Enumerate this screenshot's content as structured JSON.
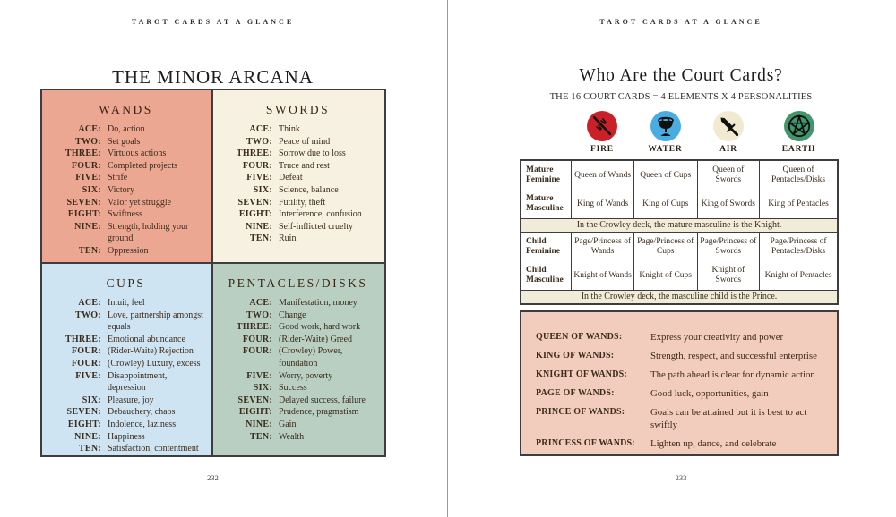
{
  "left_page": {
    "running_head": "TAROT CARDS AT A GLANCE",
    "title": "THE MINOR ARCANA",
    "page_number": "232",
    "quadrants": [
      {
        "name": "WANDS",
        "color": "#eca793",
        "entries": [
          {
            "rank": "ACE:",
            "meaning": "Do, action"
          },
          {
            "rank": "TWO:",
            "meaning": "Set goals"
          },
          {
            "rank": "THREE:",
            "meaning": "Virtuous actions"
          },
          {
            "rank": "FOUR:",
            "meaning": "Completed projects"
          },
          {
            "rank": "FIVE:",
            "meaning": "Strife"
          },
          {
            "rank": "SIX:",
            "meaning": "Victory"
          },
          {
            "rank": "SEVEN:",
            "meaning": "Valor yet struggle"
          },
          {
            "rank": "EIGHT:",
            "meaning": "Swiftness"
          },
          {
            "rank": "NINE:",
            "meaning": "Strength, holding your ground"
          },
          {
            "rank": "TEN:",
            "meaning": "Oppression"
          }
        ]
      },
      {
        "name": "SWORDS",
        "color": "#f6f1e0",
        "entries": [
          {
            "rank": "ACE:",
            "meaning": "Think"
          },
          {
            "rank": "TWO:",
            "meaning": "Peace of mind"
          },
          {
            "rank": "THREE:",
            "meaning": "Sorrow due to loss"
          },
          {
            "rank": "FOUR:",
            "meaning": "Truce and rest"
          },
          {
            "rank": "FIVE:",
            "meaning": "Defeat"
          },
          {
            "rank": "SIX:",
            "meaning": "Science, balance"
          },
          {
            "rank": "SEVEN:",
            "meaning": "Futility, theft"
          },
          {
            "rank": "EIGHT:",
            "meaning": "Interference, confusion"
          },
          {
            "rank": "NINE:",
            "meaning": "Self-inflicted cruelty"
          },
          {
            "rank": "TEN:",
            "meaning": "Ruin"
          }
        ]
      },
      {
        "name": "CUPS",
        "color": "#cfe4f3",
        "entries": [
          {
            "rank": "ACE:",
            "meaning": "Intuit, feel"
          },
          {
            "rank": "TWO:",
            "meaning": "Love, partnership amongst equals"
          },
          {
            "rank": "THREE:",
            "meaning": "Emotional abundance"
          },
          {
            "rank": "FOUR:",
            "meaning": "(Rider-Waite) Rejection"
          },
          {
            "rank": "FOUR:",
            "meaning": "(Crowley) Luxury, excess"
          },
          {
            "rank": "FIVE:",
            "meaning": "Disappointment, depression"
          },
          {
            "rank": "SIX:",
            "meaning": "Pleasure, joy"
          },
          {
            "rank": "SEVEN:",
            "meaning": "Debauchery, chaos"
          },
          {
            "rank": "EIGHT:",
            "meaning": "Indolence, laziness"
          },
          {
            "rank": "NINE:",
            "meaning": "Happiness"
          },
          {
            "rank": "TEN:",
            "meaning": "Satisfaction, contentment"
          }
        ]
      },
      {
        "name": "PENTACLES/DISKS",
        "color": "#b8cfc2",
        "entries": [
          {
            "rank": "ACE:",
            "meaning": "Manifestation, money"
          },
          {
            "rank": "TWO:",
            "meaning": "Change"
          },
          {
            "rank": "THREE:",
            "meaning": "Good work, hard work"
          },
          {
            "rank": "FOUR:",
            "meaning": "(Rider-Waite) Greed"
          },
          {
            "rank": "FOUR:",
            "meaning": "(Crowley) Power, foundation"
          },
          {
            "rank": "FIVE:",
            "meaning": "Worry, poverty"
          },
          {
            "rank": "SIX:",
            "meaning": "Success"
          },
          {
            "rank": "SEVEN:",
            "meaning": "Delayed success, failure"
          },
          {
            "rank": "EIGHT:",
            "meaning": "Prudence, pragmatism"
          },
          {
            "rank": "NINE:",
            "meaning": "Gain"
          },
          {
            "rank": "TEN:",
            "meaning": "Wealth"
          }
        ]
      }
    ]
  },
  "right_page": {
    "running_head": "TAROT CARDS AT A GLANCE",
    "title": "Who Are the Court Cards?",
    "subtitle": "THE 16 COURT CARDS = 4 ELEMENTS X 4 PERSONALITIES",
    "page_number": "233",
    "elements": [
      {
        "label": "FIRE",
        "icon": "wand-icon",
        "circle_color": "#cb2027"
      },
      {
        "label": "WATER",
        "icon": "cup-icon",
        "circle_color": "#4aade2"
      },
      {
        "label": "AIR",
        "icon": "sword-icon",
        "circle_color": "#f1ead0"
      },
      {
        "label": "EARTH",
        "icon": "pentacle-icon",
        "circle_color": "#41966b"
      }
    ],
    "court_table": {
      "note_bg": "#f1ecd9",
      "sections": [
        {
          "rows": [
            {
              "label": "Mature Feminine",
              "cells": [
                "Queen of Wands",
                "Queen of Cups",
                "Queen of Swords",
                "Queen of Pentacles/Disks"
              ]
            },
            {
              "label": "Mature Masculine",
              "cells": [
                "King of Wands",
                "King of Cups",
                "King of Swords",
                "King of Pentacles"
              ]
            }
          ],
          "note": "In the Crowley deck, the mature masculine is the Knight."
        },
        {
          "rows": [
            {
              "label": "Child Feminine",
              "cells": [
                "Page/Princess of Wands",
                "Page/Princess of Cups",
                "Page/Princess of Swords",
                "Page/Princess of Pentacles/Disks"
              ]
            },
            {
              "label": "Child Masculine",
              "cells": [
                "Knight of Wands",
                "Knight of Cups",
                "Knight of Swords",
                "Knight of Pentacles"
              ]
            }
          ],
          "note": "In the Crowley deck, the masculine child is the Prince."
        }
      ]
    },
    "wands_box": {
      "color": "#f2cdbd",
      "entries": [
        {
          "label": "QUEEN OF WANDS:",
          "meaning": "Express your creativity and power"
        },
        {
          "label": "KING OF WANDS:",
          "meaning": "Strength, respect, and successful enterprise"
        },
        {
          "label": "KNIGHT OF WANDS:",
          "meaning": "The path ahead is clear for dynamic action"
        },
        {
          "label": "PAGE OF WANDS:",
          "meaning": "Good luck, opportunities, gain"
        },
        {
          "label": "PRINCE OF WANDS:",
          "meaning": "Goals can be attained but it is best to act swiftly"
        },
        {
          "label": "PRINCESS OF WANDS:",
          "meaning": "Lighten up, dance, and celebrate"
        }
      ]
    }
  }
}
